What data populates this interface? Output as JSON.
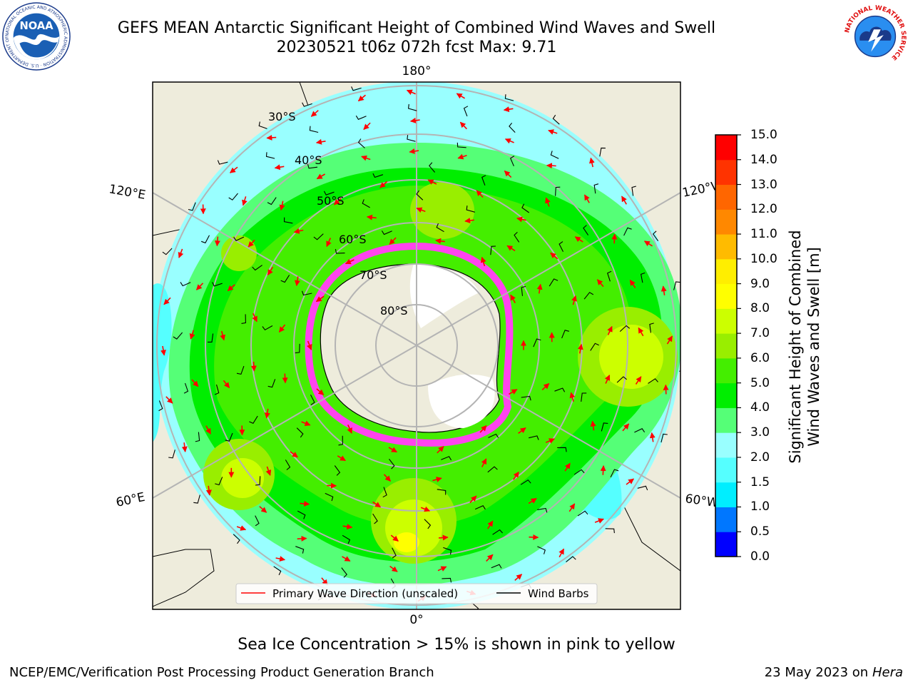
{
  "header": {
    "title_line1": "GEFS MEAN Antarctic Significant Height of Combined Wind Waves and Swell",
    "title_line2": "20230521 t06z 072h fcst   Max: 9.71"
  },
  "logos": {
    "left": "noaa-logo",
    "left_text": "NOAA",
    "left_ring_text": "NATIONAL OCEANIC AND ATMOSPHERIC ADMINISTRATION · U.S. DEPARTMENT OF COMMERCE",
    "right": "national-weather-service-logo",
    "right_ring_text": "NATIONAL WEATHER SERVICE"
  },
  "map": {
    "projection": "south-polar-stereographic",
    "lat_labels": [
      "30°S",
      "40°S",
      "50°S",
      "60°S",
      "70°S",
      "80°S"
    ],
    "lon_labels": {
      "top": "180°",
      "bottom": "0°",
      "left_upper": "120°E",
      "left_lower": "60°E",
      "right_upper": "120°W",
      "right_lower": "60°W"
    },
    "colors": {
      "land": "#eeecdc",
      "ice_shelf": "#ffffff",
      "sea_ice_edge": "#ff44ee",
      "wave_arrow": "#ff0000",
      "wind_barb": "#000000",
      "grid": "#b4b4b4"
    },
    "legend": {
      "primary_wave_direction": "Primary Wave Direction (unscaled)",
      "wind_barbs": "Wind Barbs"
    }
  },
  "colorbar": {
    "ticks": [
      "15.0",
      "14.0",
      "13.0",
      "12.0",
      "11.0",
      "10.0",
      "9.0",
      "8.0",
      "7.0",
      "6.0",
      "5.0",
      "4.0",
      "3.0",
      "2.0",
      "1.5",
      "1.0",
      "0.5",
      "0.0"
    ],
    "colors_bottom_to_top": [
      "#0000ff",
      "#0077ff",
      "#00eeff",
      "#55ffff",
      "#99ffff",
      "#55ff77",
      "#00ee00",
      "#44ee00",
      "#99ee00",
      "#ccff00",
      "#ffff00",
      "#ffee00",
      "#ffbb00",
      "#ff8800",
      "#ff6600",
      "#ff3300",
      "#ff0000"
    ],
    "label_line1": "Significant Height of Combined",
    "label_line2": "Wind Waves and Swell [m]"
  },
  "notes": {
    "sea_ice": "Sea Ice Concentration > 15% is shown in pink to yellow",
    "credit": "NCEP/EMC/Verification Post Processing Product Generation Branch",
    "date": "23 May 2023 on",
    "machine": "Hera"
  }
}
